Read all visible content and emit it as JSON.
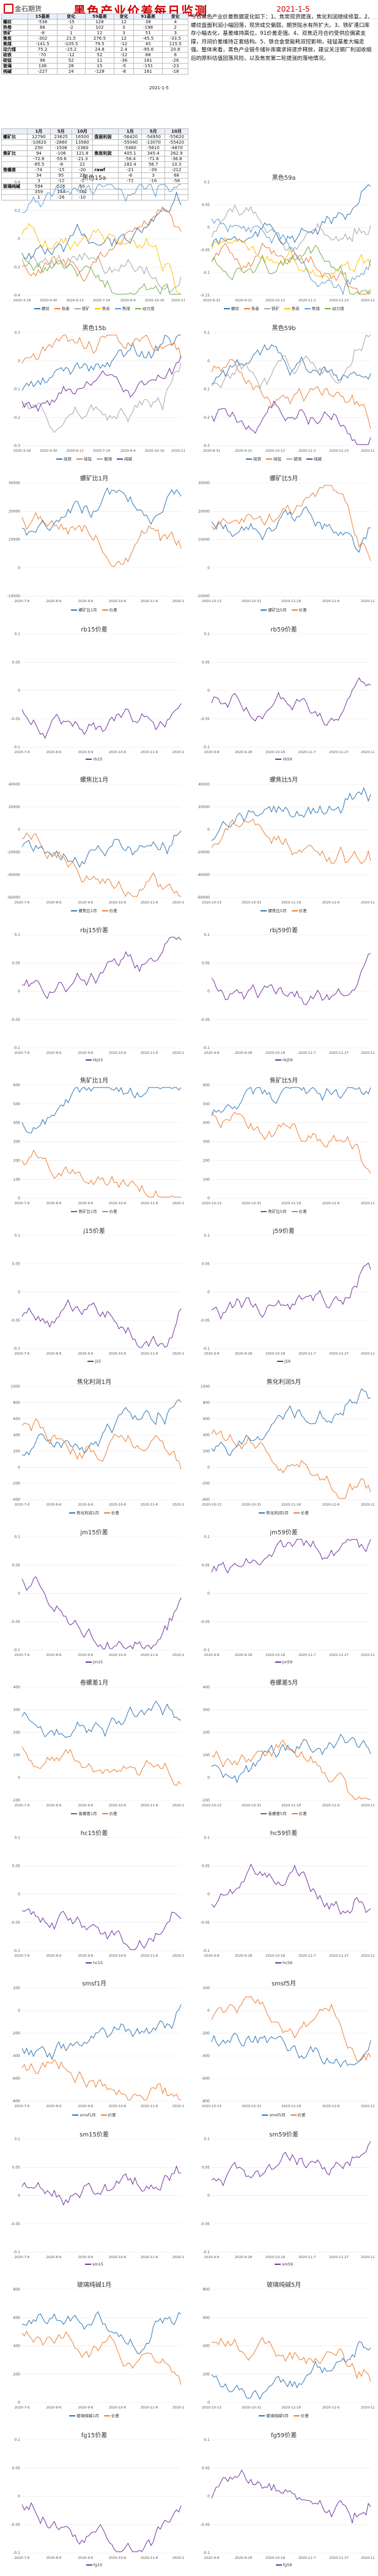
{
  "header": {
    "logo_text": "金石期货",
    "title": "黑色产业价差每日监测",
    "date": "2021-1-5"
  },
  "table1": {
    "headers": [
      "",
      "15基差",
      "变化",
      "59基差",
      "变化",
      "91基差",
      "变化"
    ],
    "rows": [
      [
        "螺纹",
        "-536",
        "-15",
        "128",
        "12",
        "38",
        "4"
      ],
      [
        "热卷",
        "66",
        "-2",
        "102",
        "0",
        "-198",
        "2"
      ],
      [
        "铁矿",
        "-8",
        "1",
        "12",
        "3",
        "51",
        "3"
      ],
      [
        "焦炭",
        "-302",
        "21.5",
        "276.5",
        "12",
        "-45.5",
        "-33.5"
      ],
      [
        "焦煤",
        "-141.5",
        "-105.5",
        "79.5",
        "-12",
        "45",
        "115.5"
      ],
      [
        "动力煤",
        "75.2",
        "-15.2",
        "24.8",
        "2.4",
        "-95.6",
        "20.8"
      ],
      [
        "硅铁",
        "-70",
        "-12",
        "52",
        "-12",
        "88",
        "6"
      ],
      [
        "硅锰",
        "96",
        "52",
        "11",
        "-36",
        "161",
        "-26"
      ],
      [
        "玻璃",
        "136",
        "28",
        "15",
        "-5",
        "-151",
        "-23"
      ],
      [
        "纯碱",
        "-227",
        "24",
        "-128",
        "-8",
        "161",
        "-18"
      ]
    ],
    "note": "2021-1-5"
  },
  "table2": {
    "headers": [
      "",
      "1月",
      "5月",
      "10月",
      "",
      "1月",
      "5月",
      "10月"
    ],
    "rows": [
      [
        "螺矿比",
        "12790",
        "23625",
        "16500",
        "盘面利润",
        "-56420",
        "-54950",
        "-55620"
      ],
      [
        "",
        "-10620",
        "-2860",
        "13580",
        "",
        "-55040",
        "-13070",
        "-55420"
      ],
      [
        "",
        "250",
        "-1506",
        "-2360",
        "",
        "-5460",
        "-5610",
        "-4870"
      ],
      [
        "焦矿比",
        "94",
        "-106",
        "121.8",
        "焦炭利润",
        "405.1",
        "345.4",
        "262.9"
      ],
      [
        "",
        "-72.8",
        "-59.6",
        "-21.3",
        "",
        "-58.4",
        "-71.6",
        "-36.8"
      ],
      [
        "",
        "-85.5",
        "-8",
        "22",
        "",
        "182.4",
        "56.7",
        "10.3"
      ],
      [
        "卷螺差",
        "-74",
        "-15",
        "-20",
        "rawf",
        "-21",
        "-39",
        "-212"
      ],
      [
        "",
        "34",
        "95",
        "22",
        "",
        "-6",
        "3",
        "68"
      ],
      [
        "",
        "3",
        "-12",
        "-1",
        "",
        "-72",
        "-16",
        "-58"
      ],
      [
        "玻璃纯碱",
        "594",
        "526",
        "50",
        "",
        "",
        "",
        ""
      ],
      [
        "",
        "359",
        "144",
        "-502",
        "",
        "",
        "",
        ""
      ],
      [
        "",
        "1",
        "-26",
        "-10",
        "",
        "",
        "",
        ""
      ]
    ]
  },
  "commentary": "今日黑色产业价差数据变化如下：1、焦炭现货提涨，焦化利润继续修复。2、螺纹盘面利润小幅回落，现货成交偏弱，期货贴水有所扩大。3、铁矿港口库存小幅去化，基差维持高位，91价差走强。4、双焦近月合约受供应偏紧支撑，月间价差维持正套结构。5、铁合金受能耗双控影响，硅锰基差大幅走强。整体来看，黑色产业链冬储补库需求将逐步释放，建议关注钢厂利润收缩后的原料估值回落风险，以及焦炭第二轮提涨的落地情况。",
  "charts": [
    {
      "title": "黑色15a",
      "type": "line",
      "series": [
        {
          "name": "螺纹",
          "color": "#2e75b6"
        },
        {
          "name": "热卷",
          "color": "#ed7d31"
        },
        {
          "name": "铁矿",
          "color": "#a5a5a5"
        },
        {
          "name": "焦炭",
          "color": "#ffc000"
        },
        {
          "name": "焦煤",
          "color": "#5b9bd5"
        },
        {
          "name": "动力煤",
          "color": "#70ad47"
        }
      ],
      "xticks": [
        "2020-3-18",
        "2020-4-30",
        "2020-6-12",
        "2020-7-24",
        "2020-9-4",
        "2020-10-16",
        "2020-11-27"
      ],
      "yticks": [
        "-0.4",
        "-0.2",
        "0",
        "0.2",
        "0.4"
      ]
    },
    {
      "title": "黑色59a",
      "type": "line",
      "series": [
        {
          "name": "螺纹",
          "color": "#2e75b6"
        },
        {
          "name": "热卷",
          "color": "#ed7d31"
        },
        {
          "name": "铁矿",
          "color": "#a5a5a5"
        },
        {
          "name": "焦炭",
          "color": "#ffc000"
        },
        {
          "name": "焦煤",
          "color": "#5b9bd5"
        },
        {
          "name": "动力煤",
          "color": "#70ad47"
        }
      ],
      "xticks": [
        "2020-8-31",
        "2020-9-21",
        "2020-10-12",
        "2020-11-2",
        "2020-11-23",
        "2020-12-14"
      ],
      "yticks": [
        "-0.15",
        "-0.1",
        "-0.05",
        "0",
        "0.05",
        "0.1"
      ]
    },
    {
      "title": "黑色15b",
      "type": "line",
      "series": [
        {
          "name": "硅铁",
          "color": "#2e75b6"
        },
        {
          "name": "硅锰",
          "color": "#ed7d31"
        },
        {
          "name": "玻璃",
          "color": "#a5a5a5"
        },
        {
          "name": "纯碱",
          "color": "#7030a0"
        }
      ],
      "xticks": [
        "2020-3-18",
        "2020-4-30",
        "2020-6-12",
        "2020-7-24",
        "2020-9-4",
        "2020-10-16",
        "2020-11-27"
      ],
      "yticks": [
        "-0.3",
        "-0.2",
        "-0.1",
        "0",
        "0.1"
      ]
    },
    {
      "title": "黑色59b",
      "type": "line",
      "series": [
        {
          "name": "硅铁",
          "color": "#2e75b6"
        },
        {
          "name": "硅锰",
          "color": "#ed7d31"
        },
        {
          "name": "玻璃",
          "color": "#a5a5a5"
        },
        {
          "name": "纯碱",
          "color": "#7030a0"
        }
      ],
      "xticks": [
        "2020-8-31",
        "2020-9-21",
        "2020-10-12",
        "2020-11-2",
        "2020-11-23",
        "2020-12-14"
      ],
      "yticks": [
        "-0.3",
        "-0.2",
        "-0.1",
        "0",
        "0.1"
      ]
    },
    {
      "title": "螺矿比1月",
      "type": "line",
      "series": [
        {
          "name": "螺矿比1月",
          "color": "#2e75b6"
        },
        {
          "name": "价差",
          "color": "#ed7d31"
        }
      ],
      "xticks": [
        "2020-7-6",
        "2020-8-6",
        "2020-9-6",
        "2020-10-6",
        "2020-11-6",
        "2020-12-6"
      ],
      "yticks": [
        "-10000",
        "0",
        "10000",
        "20000",
        "30000"
      ]
    },
    {
      "title": "螺矿比5月",
      "type": "line",
      "series": [
        {
          "name": "螺矿比5月",
          "color": "#2e75b6"
        },
        {
          "name": "价差",
          "color": "#ed7d31"
        }
      ],
      "xticks": [
        "2020-10-13",
        "2020-10-31",
        "2020-11-18",
        "2020-12-6",
        "2020-12-24"
      ],
      "yticks": [
        "-10000",
        "0",
        "10000",
        "20000",
        "30000"
      ]
    },
    {
      "title": "rb15价差",
      "type": "line",
      "series": [
        {
          "name": "rb15",
          "color": "#7030a0"
        }
      ],
      "xticks": [
        "2020-7-6",
        "2020-8-6",
        "2020-9-6",
        "2020-10-6",
        "2020-11-6",
        "2020-12-6"
      ],
      "yticks": [
        "-0.1",
        "-0.05",
        "0",
        "0.05",
        "0.1"
      ]
    },
    {
      "title": "rb59价差",
      "type": "line",
      "series": [
        {
          "name": "rb59",
          "color": "#7030a0"
        }
      ],
      "xticks": [
        "2020-9-8",
        "2020-9-28",
        "2020-10-18",
        "2020-11-7",
        "2020-11-27",
        "2020-12-17"
      ],
      "yticks": [
        "-0.1",
        "-0.05",
        "0",
        "0.05",
        "0.1"
      ]
    },
    {
      "title": "螺焦比1月",
      "type": "line",
      "series": [
        {
          "name": "螺焦比1月",
          "color": "#2e75b6"
        },
        {
          "name": "价差",
          "color": "#ed7d31"
        }
      ],
      "xticks": [
        "2020-7-6",
        "2020-8-6",
        "2020-9-6",
        "2020-10-6",
        "2020-11-6",
        "2020-12-6"
      ],
      "yticks": [
        "-60000",
        "-40000",
        "-20000",
        "0",
        "20000",
        "40000"
      ]
    },
    {
      "title": "螺焦比5月",
      "type": "line",
      "series": [
        {
          "name": "螺焦比5月",
          "color": "#2e75b6"
        },
        {
          "name": "价差",
          "color": "#ed7d31"
        }
      ],
      "xticks": [
        "2020-10-13",
        "2020-10-31",
        "2020-11-18",
        "2020-12-6",
        "2020-12-24"
      ],
      "yticks": [
        "-60000",
        "-40000",
        "-20000",
        "0",
        "20000",
        "40000"
      ]
    },
    {
      "title": "rbj15价差",
      "type": "line",
      "series": [
        {
          "name": "rbj15",
          "color": "#7030a0"
        }
      ],
      "xticks": [
        "2020-7-6",
        "2020-8-6",
        "2020-9-6",
        "2020-10-6",
        "2020-11-6",
        "2020-12-6"
      ],
      "yticks": [
        "-0.1",
        "-0.05",
        "0",
        "0.05",
        "0.1"
      ]
    },
    {
      "title": "rbj59价差",
      "type": "line",
      "series": [
        {
          "name": "rbj59",
          "color": "#7030a0"
        }
      ],
      "xticks": [
        "2020-9-8",
        "2020-9-28",
        "2020-10-18",
        "2020-11-7",
        "2020-11-27",
        "2020-12-17"
      ],
      "yticks": [
        "-0.1",
        "-0.05",
        "0",
        "0.05",
        "0.1"
      ]
    },
    {
      "title": "焦矿比1月",
      "type": "line",
      "series": [
        {
          "name": "焦矿比1月",
          "color": "#2e75b6"
        },
        {
          "name": "价差",
          "color": "#ed7d31"
        }
      ],
      "xticks": [
        "2020-7-6",
        "2020-8-6",
        "2020-9-6",
        "2020-10-6",
        "2020-11-6",
        "2020-12-6"
      ],
      "yticks": [
        "0",
        "100",
        "200",
        "300",
        "400",
        "500",
        "600"
      ]
    },
    {
      "title": "焦矿比5月",
      "type": "line",
      "series": [
        {
          "name": "焦矿比5月",
          "color": "#2e75b6"
        },
        {
          "name": "价差",
          "color": "#ed7d31"
        }
      ],
      "xticks": [
        "2020-10-13",
        "2020-10-31",
        "2020-11-18",
        "2020-12-6",
        "2020-12-24"
      ],
      "yticks": [
        "0",
        "100",
        "200",
        "300",
        "400",
        "500",
        "600"
      ]
    },
    {
      "title": "j15价差",
      "type": "line",
      "series": [
        {
          "name": "j15",
          "color": "#7030a0"
        }
      ],
      "xticks": [
        "2020-7-6",
        "2020-8-6",
        "2020-9-6",
        "2020-10-6",
        "2020-11-6",
        "2020-12-6"
      ],
      "yticks": [
        "-0.1",
        "-0.05",
        "0",
        "0.05",
        "0.1"
      ]
    },
    {
      "title": "j59价差",
      "type": "line",
      "series": [
        {
          "name": "j59",
          "color": "#7030a0"
        }
      ],
      "xticks": [
        "2020-9-8",
        "2020-9-28",
        "2020-10-18",
        "2020-11-7",
        "2020-11-27",
        "2020-12-17"
      ],
      "yticks": [
        "-0.1",
        "-0.05",
        "0",
        "0.05",
        "0.1"
      ]
    },
    {
      "title": "焦化利润1月",
      "type": "line",
      "series": [
        {
          "name": "焦化利润1月",
          "color": "#2e75b6"
        },
        {
          "name": "价差",
          "color": "#ed7d31"
        }
      ],
      "xticks": [
        "2020-7-6",
        "2020-8-6",
        "2020-9-6",
        "2020-10-6",
        "2020-11-6",
        "2020-12-6"
      ],
      "yticks": [
        "-400",
        "-200",
        "0",
        "200",
        "400",
        "600",
        "800",
        "1000"
      ]
    },
    {
      "title": "焦化利润5月",
      "type": "line",
      "series": [
        {
          "name": "焦化利润5月",
          "color": "#2e75b6"
        },
        {
          "name": "价差",
          "color": "#ed7d31"
        }
      ],
      "xticks": [
        "2020-10-13",
        "2020-10-31",
        "2020-11-18",
        "2020-12-6",
        "2020-12-24"
      ],
      "yticks": [
        "-400",
        "-200",
        "0",
        "200",
        "400",
        "600",
        "800",
        "1000"
      ]
    },
    {
      "title": "jm15价差",
      "type": "line",
      "series": [
        {
          "name": "jm15",
          "color": "#7030a0"
        }
      ],
      "xticks": [
        "2020-7-6",
        "2020-8-6",
        "2020-9-6",
        "2020-10-6",
        "2020-11-6",
        "2020-12-6"
      ],
      "yticks": [
        "-0.1",
        "-0.05",
        "0",
        "0.05",
        "0.1"
      ]
    },
    {
      "title": "jm59价差",
      "type": "line",
      "series": [
        {
          "name": "jm59",
          "color": "#7030a0"
        }
      ],
      "xticks": [
        "2020-9-8",
        "2020-9-28",
        "2020-10-18",
        "2020-11-7",
        "2020-11-27",
        "2020-12-17"
      ],
      "yticks": [
        "-0.1",
        "-0.05",
        "0",
        "0.05",
        "0.1"
      ]
    },
    {
      "title": "卷螺差1月",
      "type": "line",
      "series": [
        {
          "name": "卷螺差1月",
          "color": "#2e75b6"
        },
        {
          "name": "价差",
          "color": "#ed7d31"
        }
      ],
      "xticks": [
        "2020-7-6",
        "2020-8-6",
        "2020-9-6",
        "2020-10-6",
        "2020-11-6",
        "2020-12-6"
      ],
      "yticks": [
        "-100",
        "0",
        "100",
        "200",
        "300",
        "400"
      ]
    },
    {
      "title": "卷螺差5月",
      "type": "line",
      "series": [
        {
          "name": "卷螺差5月",
          "color": "#2e75b6"
        },
        {
          "name": "价差",
          "color": "#ed7d31"
        }
      ],
      "xticks": [
        "2020-10-13",
        "2020-10-31",
        "2020-11-18",
        "2020-12-6",
        "2020-12-24"
      ],
      "yticks": [
        "-100",
        "0",
        "100",
        "200",
        "300",
        "400"
      ]
    },
    {
      "title": "hc15价差",
      "type": "line",
      "series": [
        {
          "name": "hc15",
          "color": "#7030a0"
        }
      ],
      "xticks": [
        "2020-7-6",
        "2020-8-6",
        "2020-9-6",
        "2020-10-6",
        "2020-11-6",
        "2020-12-6"
      ],
      "yticks": [
        "-0.1",
        "-0.05",
        "0",
        "0.05",
        "0.1"
      ]
    },
    {
      "title": "hc59价差",
      "type": "line",
      "series": [
        {
          "name": "hc59",
          "color": "#7030a0"
        }
      ],
      "xticks": [
        "2020-9-8",
        "2020-9-28",
        "2020-10-18",
        "2020-11-7",
        "2020-11-27",
        "2020-12-17"
      ],
      "yticks": [
        "-0.1",
        "-0.05",
        "0",
        "0.05",
        "0.1"
      ]
    },
    {
      "title": "smsf1月",
      "type": "line",
      "series": [
        {
          "name": "smsf1月",
          "color": "#2e75b6"
        },
        {
          "name": "价差",
          "color": "#ed7d31"
        }
      ],
      "xticks": [
        "2020-7-6",
        "2020-8-6",
        "2020-9-6",
        "2020-10-6",
        "2020-11-6",
        "2020-12-6"
      ],
      "yticks": [
        "-800",
        "-600",
        "-400",
        "-200",
        "0",
        "200"
      ]
    },
    {
      "title": "smsf5月",
      "type": "line",
      "series": [
        {
          "name": "smsf5月",
          "color": "#2e75b6"
        },
        {
          "name": "价差",
          "color": "#ed7d31"
        }
      ],
      "xticks": [
        "2020-10-13",
        "2020-10-31",
        "2020-11-18",
        "2020-12-6",
        "2020-12-24"
      ],
      "yticks": [
        "-800",
        "-600",
        "-400",
        "-200",
        "0",
        "200"
      ]
    },
    {
      "title": "sm15价差",
      "type": "line",
      "series": [
        {
          "name": "sm15",
          "color": "#7030a0"
        }
      ],
      "xticks": [
        "2020-7-6",
        "2020-8-6",
        "2020-9-6",
        "2020-10-6",
        "2020-11-6",
        "2020-12-6"
      ],
      "yticks": [
        "-0.1",
        "-0.05",
        "0",
        "0.05",
        "0.1"
      ]
    },
    {
      "title": "sm59价差",
      "type": "line",
      "series": [
        {
          "name": "sm59",
          "color": "#7030a0"
        }
      ],
      "xticks": [
        "2020-9-8",
        "2020-9-28",
        "2020-10-18",
        "2020-11-7",
        "2020-11-27",
        "2020-12-17"
      ],
      "yticks": [
        "-0.1",
        "-0.05",
        "0",
        "0.05",
        "0.1"
      ]
    },
    {
      "title": "玻璃纯碱1月",
      "type": "line",
      "series": [
        {
          "name": "玻璃纯碱1月",
          "color": "#2e75b6"
        },
        {
          "name": "价差",
          "color": "#ed7d31"
        }
      ],
      "xticks": [
        "2020-7-6",
        "2020-8-6",
        "2020-9-6",
        "2020-10-6",
        "2020-11-6",
        "2020-12-6"
      ],
      "yticks": [
        "0",
        "200",
        "400",
        "600",
        "800"
      ]
    },
    {
      "title": "玻璃纯碱5月",
      "type": "line",
      "series": [
        {
          "name": "玻璃纯碱5月",
          "color": "#2e75b6"
        },
        {
          "name": "价差",
          "color": "#ed7d31"
        }
      ],
      "xticks": [
        "2020-10-13",
        "2020-10-31",
        "2020-11-18",
        "2020-12-6",
        "2020-12-24"
      ],
      "yticks": [
        "0",
        "200",
        "400",
        "600",
        "800"
      ]
    },
    {
      "title": "fg15价差",
      "type": "line",
      "series": [
        {
          "name": "fg15",
          "color": "#7030a0"
        }
      ],
      "xticks": [
        "2020-7-6",
        "2020-8-6",
        "2020-9-6",
        "2020-10-6",
        "2020-11-6",
        "2020-12-6"
      ],
      "yticks": [
        "-0.1",
        "-0.05",
        "0",
        "0.05",
        "0.1"
      ]
    },
    {
      "title": "fg59价差",
      "type": "line",
      "series": [
        {
          "name": "fg59",
          "color": "#7030a0"
        }
      ],
      "xticks": [
        "2020-9-8",
        "2020-9-28",
        "2020-10-18",
        "2020-11-7",
        "2020-11-27",
        "2020-12-17"
      ],
      "yticks": [
        "-0.1",
        "-0.05",
        "0",
        "0.05",
        "0.1"
      ]
    }
  ]
}
